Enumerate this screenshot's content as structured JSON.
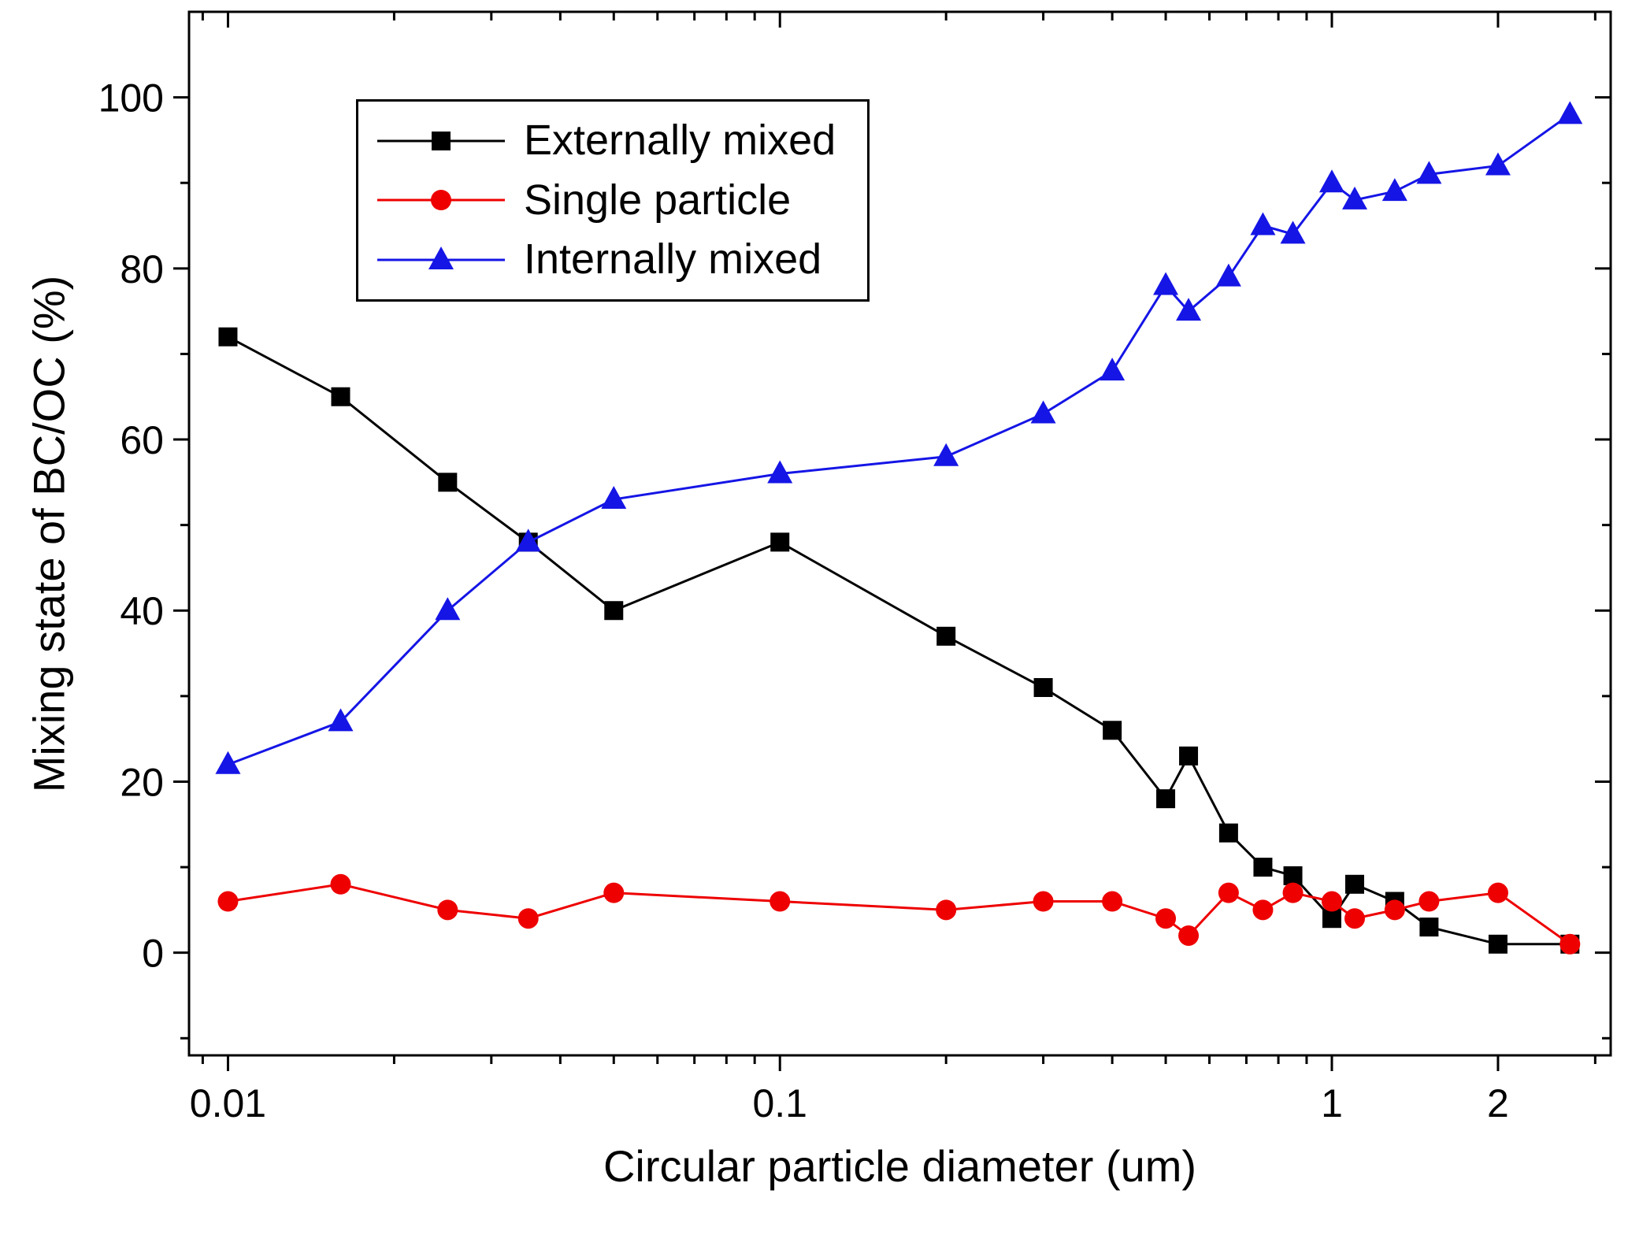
{
  "chart_data": {
    "type": "line",
    "title": "",
    "xlabel": "Circular particle diameter (um)",
    "ylabel": "Mixing state of BC/OC (%)",
    "x_scale": "log",
    "xlim": [
      0.0085,
      3.2
    ],
    "ylim": [
      -12,
      110
    ],
    "x_major_ticks": [
      0.01,
      0.1,
      1,
      2
    ],
    "x_major_tick_labels": [
      "0.01",
      "0.1",
      "1",
      "2"
    ],
    "y_major_ticks": [
      0,
      20,
      40,
      60,
      80,
      100
    ],
    "y_minor_step": 10,
    "grid": false,
    "legend_position": "top-left",
    "x": [
      0.01,
      0.016,
      0.025,
      0.035,
      0.05,
      0.1,
      0.2,
      0.3,
      0.4,
      0.5,
      0.55,
      0.65,
      0.75,
      0.85,
      1.0,
      1.1,
      1.3,
      1.5,
      2.0,
      2.7
    ],
    "series": [
      {
        "name": "Externally mixed",
        "color": "#000000",
        "marker": "square",
        "values": [
          72,
          65,
          55,
          48,
          40,
          48,
          37,
          31,
          26,
          18,
          23,
          14,
          10,
          9,
          4,
          8,
          6,
          3,
          1,
          1
        ]
      },
      {
        "name": "Single particle",
        "color": "#ee0000",
        "marker": "circle",
        "values": [
          6,
          8,
          5,
          4,
          7,
          6,
          5,
          6,
          6,
          4,
          2,
          7,
          5,
          7,
          6,
          4,
          5,
          6,
          7,
          1
        ]
      },
      {
        "name": "Internally mixed",
        "color": "#1515e6",
        "marker": "triangle",
        "values": [
          22,
          27,
          40,
          48,
          53,
          56,
          58,
          63,
          68,
          78,
          75,
          79,
          85,
          84,
          90,
          88,
          89,
          91,
          92,
          98
        ]
      }
    ]
  }
}
